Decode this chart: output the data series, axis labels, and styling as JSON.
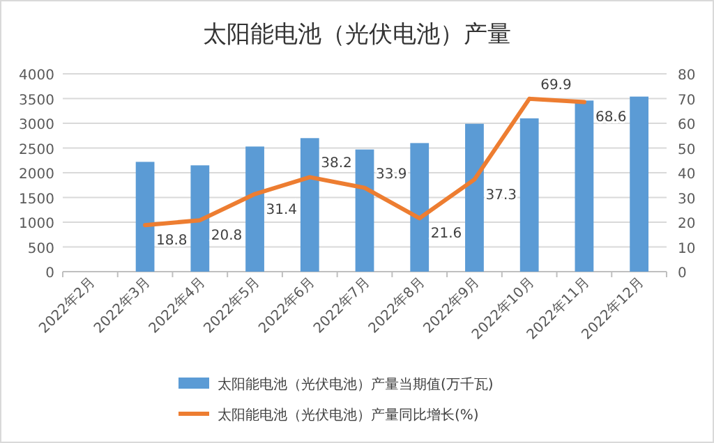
{
  "chart_data": {
    "type": "bar",
    "title": "太阳能电池（光伏电池）产量",
    "categories": [
      "2022年2月",
      "2022年3月",
      "2022年4月",
      "2022年5月",
      "2022年6月",
      "2022年7月",
      "2022年8月",
      "2022年9月",
      "2022年10月",
      "2022年11月",
      "2022年12月"
    ],
    "series": [
      {
        "name": "太阳能电池（光伏电池）产量当期值(万千瓦)",
        "color": "#5b9bd5",
        "values": [
          null,
          2220,
          2150,
          2530,
          2700,
          2470,
          2600,
          2990,
          3100,
          3460,
          3540
        ]
      },
      {
        "name": "太阳能电池（光伏电池）产量同比增长(%)",
        "type": "line",
        "axis": "y2",
        "color": "#ed7d31",
        "values": [
          null,
          18.8,
          20.8,
          31.4,
          38.2,
          33.9,
          21.6,
          37.3,
          69.9,
          68.6,
          null
        ],
        "value_labels": [
          null,
          "18.8",
          "20.8",
          "31.4",
          "38.2",
          "33.9",
          "21.6",
          "37.3",
          "69.9",
          "68.6",
          null
        ]
      }
    ],
    "ylim": [
      0,
      4000
    ],
    "yticks": [
      0,
      500,
      1000,
      1500,
      2000,
      2500,
      3000,
      3500,
      4000
    ],
    "y2lim": [
      0,
      80
    ],
    "y2ticks": [
      0,
      10,
      20,
      30,
      40,
      50,
      60,
      70,
      80
    ],
    "grid": "y",
    "legend": "bottom"
  }
}
